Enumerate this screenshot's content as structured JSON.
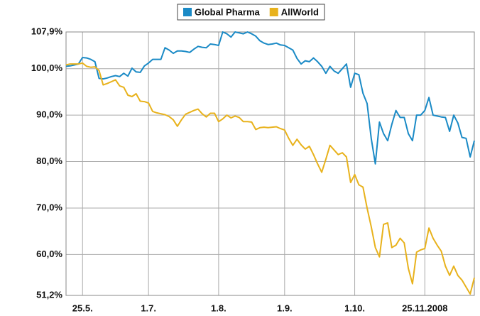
{
  "chart_data": {
    "type": "line",
    "categories": [
      null,
      null,
      null,
      null,
      "25.5.",
      null,
      null,
      null,
      null,
      null,
      null,
      null,
      null,
      null,
      null,
      null,
      null,
      null,
      null,
      null,
      "1.7.",
      null,
      null,
      null,
      null,
      null,
      null,
      null,
      null,
      null,
      null,
      null,
      null,
      null,
      null,
      null,
      null,
      "1.8.",
      null,
      null,
      null,
      null,
      null,
      null,
      null,
      null,
      null,
      null,
      null,
      null,
      null,
      null,
      null,
      "1.9.",
      null,
      null,
      null,
      null,
      null,
      null,
      null,
      null,
      null,
      null,
      null,
      null,
      null,
      null,
      null,
      null,
      "1.10.",
      null,
      null,
      null,
      null,
      null,
      null,
      null,
      null,
      null,
      null,
      null,
      null,
      null,
      null,
      null,
      null,
      "25.11.2008",
      null,
      null,
      null,
      null,
      null,
      null,
      null,
      null,
      null,
      null,
      null,
      null
    ],
    "series": [
      {
        "name": "Global Pharma",
        "color": "#1a8ac6",
        "values": [
          100.5,
          100.6,
          100.8,
          101,
          102.4,
          102.3,
          102,
          101.5,
          97.9,
          97.8,
          98,
          98.3,
          98.5,
          98.3,
          99,
          98.4,
          100.1,
          99.3,
          99.2,
          100.6,
          101.2,
          102,
          102,
          102,
          104.5,
          104,
          103.3,
          103.8,
          103.8,
          103.7,
          103.5,
          104.2,
          104.8,
          104.6,
          104.5,
          105.3,
          105.2,
          105,
          107.9,
          107.5,
          106.8,
          107.9,
          107.7,
          107.5,
          107.9,
          107.5,
          107,
          106,
          105.5,
          105.2,
          105.3,
          105.5,
          105.1,
          105,
          104.5,
          104,
          102.2,
          101,
          101.7,
          101.5,
          102.3,
          101.5,
          100.5,
          99,
          100.5,
          99.5,
          99,
          100,
          101,
          96,
          99,
          98.7,
          94.7,
          92.5,
          85,
          79.5,
          88.5,
          86,
          84.5,
          88,
          91,
          89.5,
          89.5,
          86,
          84.5,
          90,
          90,
          91,
          93.8,
          90,
          89.8,
          89.6,
          89.5,
          86.5,
          90,
          88.3,
          85.2,
          85,
          81,
          84.5
        ]
      },
      {
        "name": "AllWorld",
        "color": "#e8b21c",
        "values": [
          100.8,
          101,
          101,
          101,
          101.2,
          100.5,
          100.3,
          100.4,
          99.6,
          96.5,
          96.8,
          97.2,
          97.6,
          96.3,
          96,
          94.3,
          94,
          94.6,
          93,
          92.9,
          92.6,
          90.8,
          90.5,
          90.3,
          90.1,
          89.7,
          89,
          87.6,
          89,
          90.2,
          90.6,
          91,
          91.3,
          90.3,
          89.6,
          90.4,
          90.4,
          88.6,
          89.2,
          90,
          89.4,
          89.8,
          89.5,
          88.6,
          88.6,
          88.5,
          86.9,
          87.3,
          87.4,
          87.3,
          87.4,
          87.5,
          87.1,
          86.8,
          85,
          83.5,
          84.8,
          83.6,
          82.7,
          83.3,
          81.5,
          79.5,
          77.7,
          80.5,
          83.5,
          82.5,
          81.5,
          81.9,
          81,
          75.5,
          77.2,
          75,
          74.5,
          70,
          66,
          61.5,
          59.5,
          66.5,
          66.8,
          61.5,
          62,
          63.5,
          62.5,
          57,
          53.7,
          60.5,
          61,
          61.3,
          65.7,
          63.5,
          62,
          60.7,
          57.5,
          55.5,
          57.5,
          55.5,
          54.5,
          53,
          51.5,
          55
        ]
      }
    ],
    "ylim": [
      51.2,
      107.9
    ],
    "yticks": [
      {
        "value": 51.2,
        "label": "51,2%"
      },
      {
        "value": 60,
        "label": "60,0%"
      },
      {
        "value": 70,
        "label": "70,0%"
      },
      {
        "value": 80,
        "label": "80,0%"
      },
      {
        "value": 90,
        "label": "90,0%"
      },
      {
        "value": 100,
        "label": "100,0%"
      },
      {
        "value": 107.9,
        "label": "107,9%"
      }
    ],
    "grid": true,
    "legend": "top"
  }
}
